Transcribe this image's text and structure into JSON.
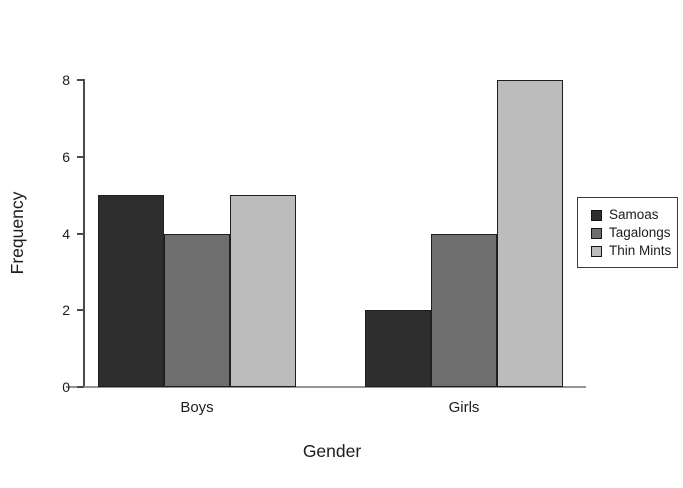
{
  "chart_data": {
    "type": "bar",
    "title": "",
    "xlabel": "Gender",
    "ylabel": "Frequency",
    "categories": [
      "Boys",
      "Girls"
    ],
    "series": [
      {
        "name": "Samoas",
        "color": "#2e2e2e",
        "values": [
          5,
          2
        ]
      },
      {
        "name": "Tagalongs",
        "color": "#6e6e6e",
        "values": [
          4,
          4
        ]
      },
      {
        "name": "Thin Mints",
        "color": "#bcbcbc",
        "values": [
          5,
          8
        ]
      }
    ],
    "ylim": [
      0,
      8
    ],
    "yticks": [
      0,
      2,
      4,
      6,
      8
    ],
    "grid": false,
    "bar_border_color": "#1f1f1f",
    "legend": {
      "position": "right",
      "entries": [
        "Samoas",
        "Tagalongs",
        "Thin Mints"
      ]
    },
    "background": "#ffffff"
  }
}
